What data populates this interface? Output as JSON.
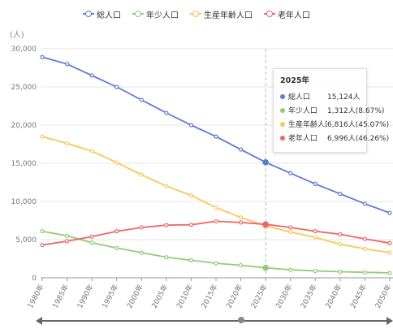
{
  "unit_label": "(人)",
  "legend": [
    {
      "name": "総人口",
      "color": "#5b7bd5"
    },
    {
      "name": "年少人口",
      "color": "#91cc75"
    },
    {
      "name": "生産年齢人口",
      "color": "#fac858"
    },
    {
      "name": "老年人口",
      "color": "#ee6666"
    }
  ],
  "tooltip": {
    "title": "2025年",
    "rows": [
      {
        "name": "総人口",
        "value": "15,124人",
        "color": "#5b7bd5"
      },
      {
        "name": "年少人口",
        "value": "1,312人(8.67%)",
        "color": "#91cc75"
      },
      {
        "name": "生産年齢人口",
        "value": "6,816人(45.07%)",
        "color": "#fac858"
      },
      {
        "name": "老年人口",
        "value": "6,996人(46.26%)",
        "color": "#ee6666"
      }
    ]
  },
  "chart_data": {
    "type": "line",
    "categories": [
      "1980年",
      "1985年",
      "1990年",
      "1995年",
      "2000年",
      "2005年",
      "2010年",
      "2015年",
      "2020年",
      "2025年",
      "2030年",
      "2035年",
      "2040年",
      "2045年",
      "2050年"
    ],
    "ylim": [
      0,
      30000
    ],
    "yticks": [
      0,
      5000,
      10000,
      15000,
      20000,
      25000,
      30000
    ],
    "ytick_labels": [
      "0",
      "5,000",
      "10,000",
      "15,000",
      "20,000",
      "25,000",
      "30,000"
    ],
    "highlight_category": "2025年",
    "grid": true,
    "legend_position": "top-center",
    "series": [
      {
        "name": "総人口",
        "color": "#5b7bd5",
        "values": [
          28900,
          28000,
          26500,
          25000,
          23300,
          21600,
          20000,
          18500,
          16800,
          15124,
          13700,
          12300,
          11000,
          9700,
          8500
        ]
      },
      {
        "name": "年少人口",
        "color": "#91cc75",
        "values": [
          6100,
          5500,
          4600,
          3900,
          3300,
          2700,
          2300,
          1900,
          1650,
          1312,
          1050,
          900,
          800,
          720,
          650
        ]
      },
      {
        "name": "生産年齢人口",
        "color": "#fac858",
        "values": [
          18500,
          17600,
          16600,
          15100,
          13500,
          12000,
          10800,
          9200,
          7900,
          6816,
          6000,
          5300,
          4400,
          3800,
          3300
        ]
      },
      {
        "name": "老年人口",
        "color": "#ee6666",
        "values": [
          4300,
          4800,
          5400,
          6100,
          6600,
          6900,
          6950,
          7400,
          7250,
          6996,
          6600,
          6100,
          5700,
          5100,
          4550
        ]
      }
    ]
  }
}
